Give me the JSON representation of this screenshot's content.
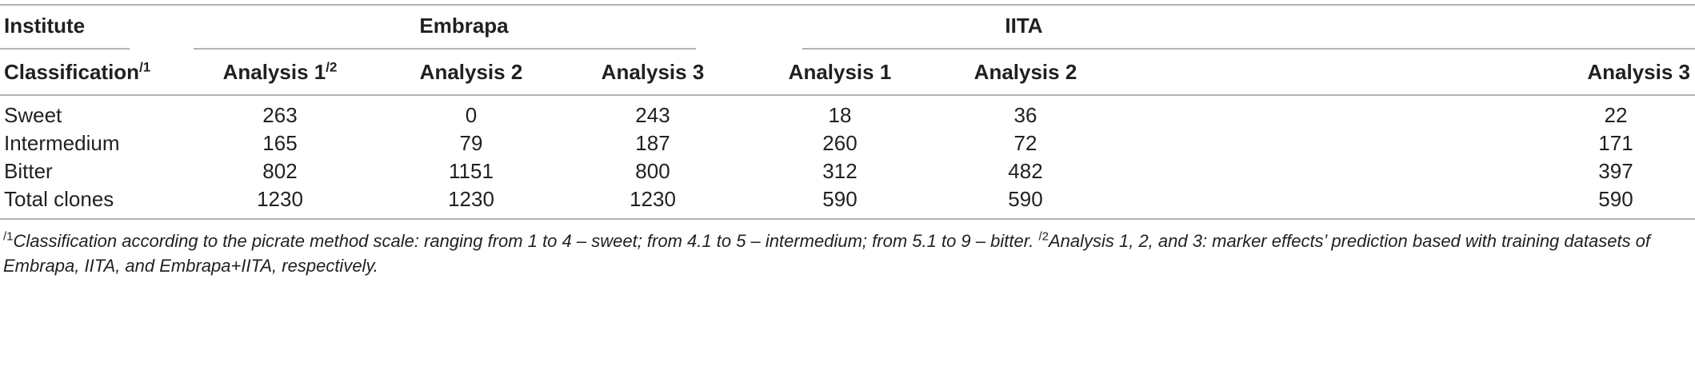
{
  "header": {
    "institute_label": "Institute",
    "group_embrapa": "Embrapa",
    "group_iita": "IITA",
    "classification_label": "Classification",
    "classification_sup": "/1",
    "columns": [
      {
        "label": "Analysis 1",
        "sup": "/2"
      },
      {
        "label": "Analysis 2",
        "sup": ""
      },
      {
        "label": "Analysis 3",
        "sup": ""
      },
      {
        "label": "Analysis 1",
        "sup": ""
      },
      {
        "label": "Analysis 2",
        "sup": ""
      },
      {
        "label": "Analysis 3",
        "sup": ""
      }
    ]
  },
  "rows": [
    {
      "label": "Sweet",
      "values": [
        "263",
        "0",
        "243",
        "18",
        "36",
        "22"
      ]
    },
    {
      "label": "Intermedium",
      "values": [
        "165",
        "79",
        "187",
        "260",
        "72",
        "171"
      ]
    },
    {
      "label": "Bitter",
      "values": [
        "802",
        "1151",
        "800",
        "312",
        "482",
        "397"
      ]
    },
    {
      "label": "Total clones",
      "values": [
        "1230",
        "1230",
        "1230",
        "590",
        "590",
        "590"
      ]
    }
  ],
  "footnote": {
    "sup1": "/1",
    "text1": "Classification according to the picrate method scale: ranging from 1 to 4 – sweet; from 4.1 to 5 – intermedium; from 5.1 to 9 – bitter. ",
    "sup2": "/2",
    "text2": "Analysis 1, 2, and 3: marker effects’ prediction based with training datasets of Embrapa, IITA, and Embrapa+IITA, respectively."
  }
}
